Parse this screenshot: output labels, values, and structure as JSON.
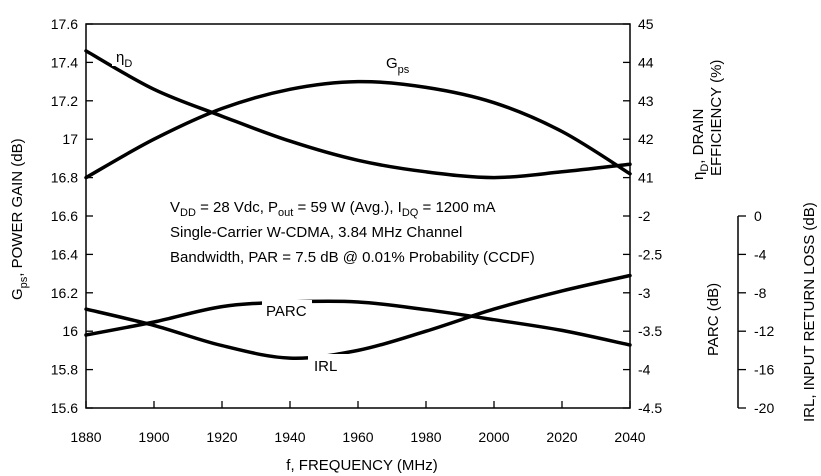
{
  "chart_data": {
    "type": "line",
    "xlabel": "f, FREQUENCY (MHz)",
    "x_ticks": [
      1880,
      1900,
      1920,
      1940,
      1960,
      1980,
      2000,
      2020,
      2040
    ],
    "xlim": [
      1880,
      2040
    ],
    "left_axis": {
      "label_main": "G",
      "label_sub": "ps",
      "label_rest": ", POWER GAIN (dB)",
      "ylim": [
        15.6,
        17.6
      ],
      "ticks": [
        "15.6",
        "15.8",
        "16",
        "16.2",
        "16.4",
        "16.6",
        "16.8",
        "17",
        "17.2",
        "17.4",
        "17.6"
      ]
    },
    "right_axis_upper": {
      "label_line1_main": "η",
      "label_line1_sub": "D",
      "label_line1_rest": ", DRAIN",
      "label_line2": "EFFICIENCY (%)",
      "range": [
        41,
        45
      ],
      "ticks": [
        "41",
        "42",
        "43",
        "44",
        "45"
      ]
    },
    "right_axis_lower": {
      "label": "PARC (dB)",
      "range": [
        -4.5,
        -2
      ],
      "ticks": [
        "-2",
        "-2.5",
        "-3",
        "-3.5",
        "-4",
        "-4.5"
      ]
    },
    "far_right_axis": {
      "label": "IRL, INPUT RETURN LOSS (dB)",
      "range": [
        -20,
        0
      ],
      "ticks": [
        "0",
        "-4",
        "-8",
        "-12",
        "-16",
        "-20"
      ]
    },
    "series": [
      {
        "name": "G",
        "name_sub": "ps",
        "axis": "left",
        "x": [
          1880,
          1900,
          1920,
          1940,
          1960,
          1980,
          2000,
          2020,
          2040
        ],
        "y": [
          16.8,
          17.0,
          17.16,
          17.26,
          17.3,
          17.27,
          17.19,
          17.04,
          16.82
        ]
      },
      {
        "name": "η",
        "name_sub": "D",
        "axis": "efficiency",
        "x": [
          1880,
          1900,
          1920,
          1940,
          1960,
          1980,
          2000,
          2020,
          2040
        ],
        "y": [
          44.3,
          43.3,
          42.6,
          41.95,
          41.45,
          41.15,
          41.0,
          41.15,
          41.35
        ]
      },
      {
        "name": "PARC",
        "axis": "parc",
        "x": [
          1880,
          1900,
          1920,
          1940,
          1960,
          1980,
          2000,
          2020,
          2040
        ],
        "y": [
          -3.55,
          -3.38,
          -3.18,
          -3.12,
          -3.12,
          -3.22,
          -3.35,
          -3.49,
          -3.68
        ]
      },
      {
        "name": "IRL",
        "axis": "irl",
        "x": [
          1880,
          1900,
          1920,
          1940,
          1960,
          1980,
          2000,
          2020,
          2040
        ],
        "y": [
          -9.7,
          -11.4,
          -13.5,
          -14.8,
          -14.0,
          -12.0,
          -9.7,
          -7.8,
          -6.2
        ]
      }
    ],
    "annotation": {
      "line1_parts": [
        {
          "t": "V",
          "sub": false
        },
        {
          "t": "DD",
          "sub": true
        },
        {
          "t": " = 28 Vdc, P",
          "sub": false
        },
        {
          "t": "out",
          "sub": true
        },
        {
          "t": " = 59 W (Avg.), I",
          "sub": false
        },
        {
          "t": "DQ",
          "sub": true
        },
        {
          "t": " = 1200 mA",
          "sub": false
        }
      ],
      "line2": "Single-Carrier W-CDMA, 3.84 MHz Channel",
      "line3": "Bandwidth, PAR = 7.5 dB @ 0.01% Probability (CCDF)"
    }
  }
}
